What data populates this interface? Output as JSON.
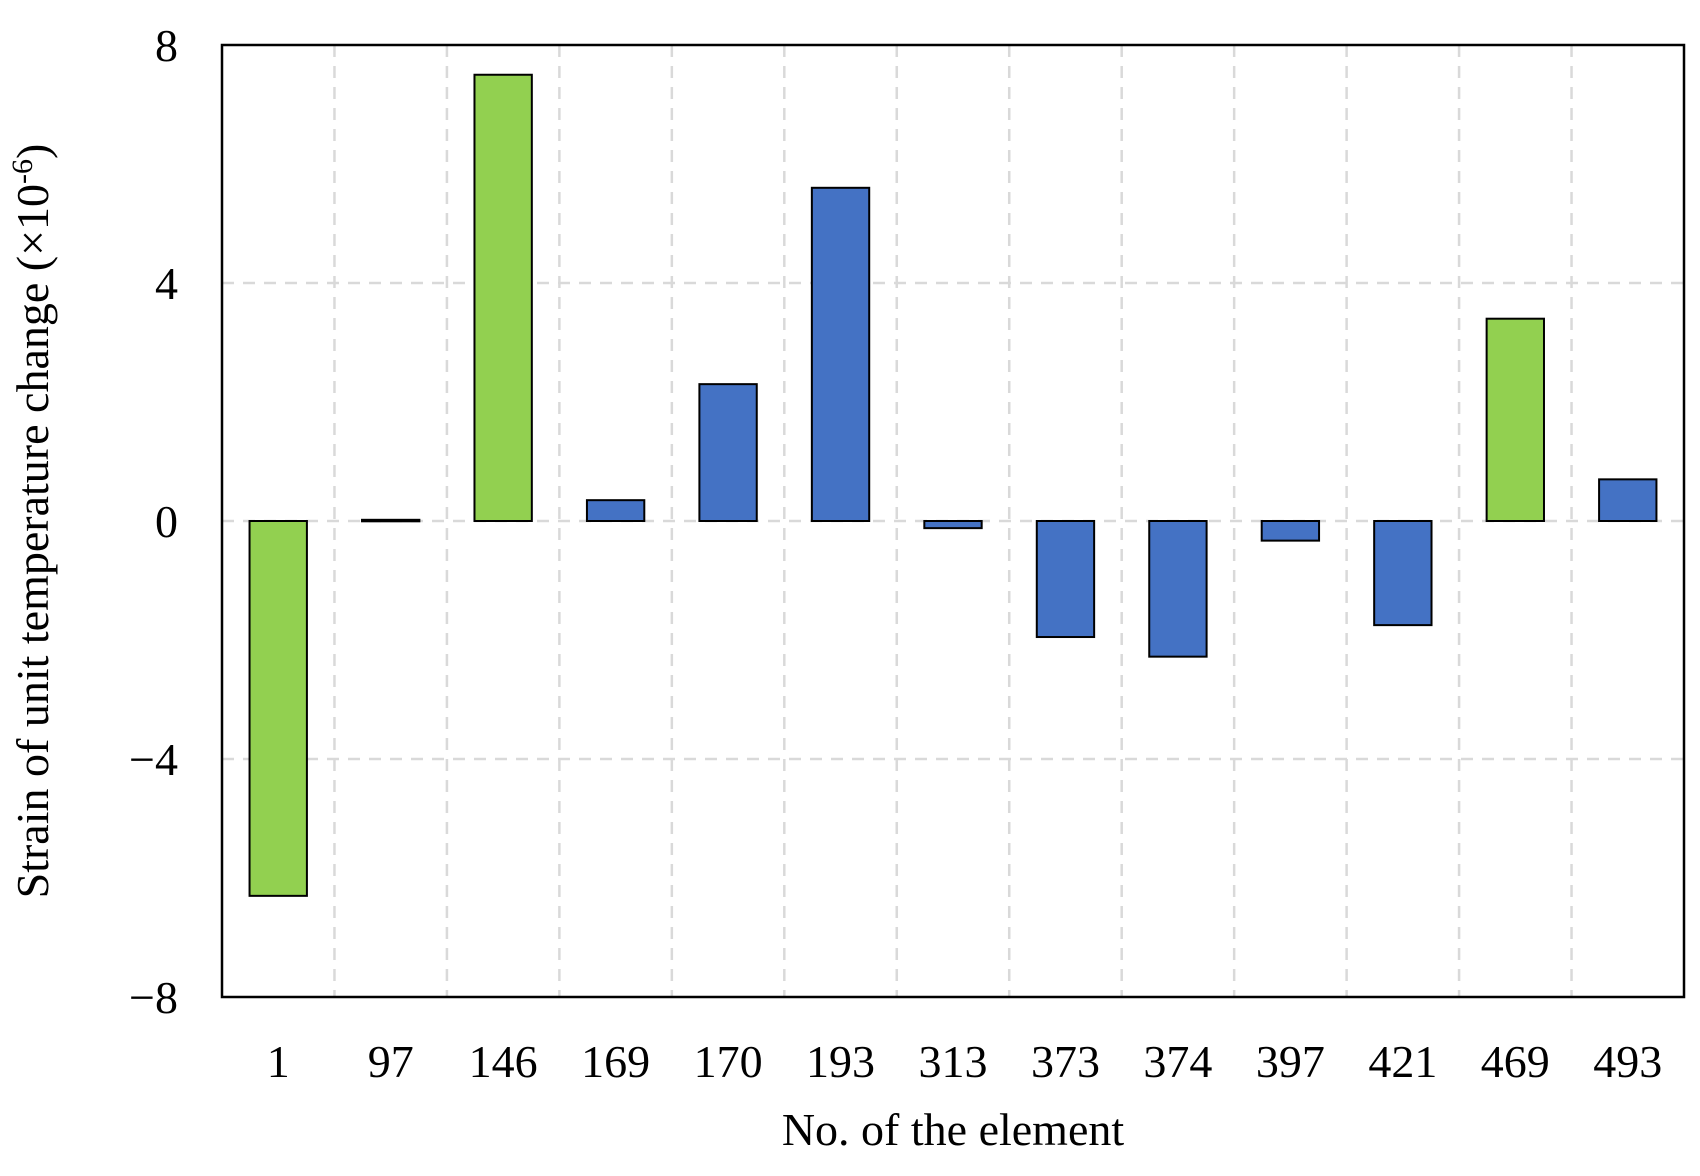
{
  "chart_data": {
    "type": "bar",
    "xlabel": "No. of the element",
    "ylabel": {
      "main": "Strain of unit temperature change (×10",
      "superscript": "-6",
      "close": ")"
    },
    "categories": [
      "1",
      "97",
      "146",
      "169",
      "170",
      "193",
      "313",
      "373",
      "374",
      "397",
      "421",
      "469",
      "493"
    ],
    "values": [
      -6.3,
      0.02,
      7.5,
      0.35,
      2.3,
      5.6,
      -0.12,
      -1.95,
      -2.28,
      -0.33,
      -1.75,
      3.4,
      0.7
    ],
    "highlighted": [
      "1",
      "146",
      "469"
    ],
    "ylim": [
      -8,
      8
    ],
    "yticks": [
      8,
      4,
      0,
      -4,
      -8
    ],
    "ytick_labels": [
      "8",
      "4",
      "0",
      "−4",
      "−8"
    ],
    "grid": true,
    "legend": "none",
    "colors": {
      "highlight": "#92d050",
      "default": "#4472c4",
      "grid": "#d9d9d9",
      "axis": "#000000"
    }
  }
}
